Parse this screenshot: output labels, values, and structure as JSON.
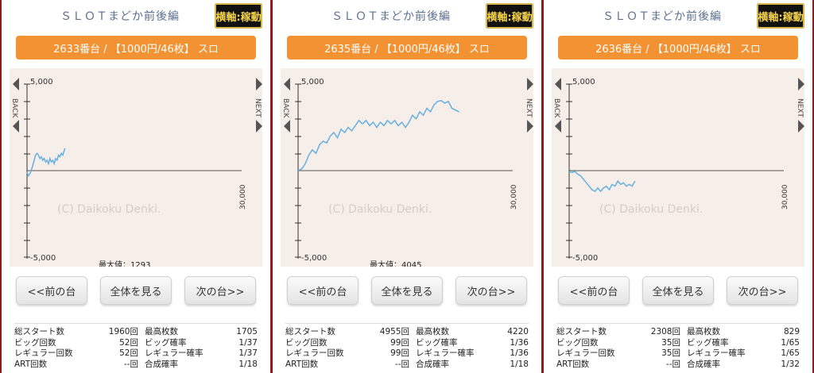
{
  "panels": [
    {
      "title": "ＳＬＯＴまどか前後編",
      "axis_button": "横軸:稼動",
      "machine_label": "2633番台 / 【1000円/46枚】 スロ",
      "chart": {
        "y_tick_top": "5,000",
        "y_tick_bottom": "-5,000",
        "x_tick_right": "30,000",
        "watermark": "(C) Daikoku Denki.",
        "back_label": "BACK",
        "next_label": "NEXT",
        "max_label": "最大値：1293",
        "x_max": 30000,
        "y_min": -5000,
        "y_max": 5000,
        "line_color": "#66b0e0",
        "series": [
          [
            0,
            -100
          ],
          [
            200,
            -300
          ],
          [
            500,
            -100
          ],
          [
            800,
            300
          ],
          [
            1000,
            600
          ],
          [
            1200,
            900
          ],
          [
            1400,
            1000
          ],
          [
            1600,
            900
          ],
          [
            1800,
            700
          ],
          [
            2000,
            800
          ],
          [
            2200,
            600
          ],
          [
            2400,
            700
          ],
          [
            2600,
            500
          ],
          [
            2800,
            600
          ],
          [
            3000,
            400
          ],
          [
            3200,
            700
          ],
          [
            3400,
            500
          ],
          [
            3600,
            600
          ],
          [
            3800,
            400
          ],
          [
            4000,
            700
          ],
          [
            4200,
            600
          ],
          [
            4400,
            900
          ],
          [
            4600,
            800
          ],
          [
            4800,
            1000
          ],
          [
            5000,
            900
          ],
          [
            5300,
            1293
          ]
        ]
      },
      "buttons": {
        "prev": "<<前の台",
        "all": "全体を見る",
        "next": "次の台>>"
      },
      "stats": [
        {
          "label1": "総スタート数",
          "value1": "1960回",
          "label2": "最高枚数",
          "value2": "1705"
        },
        {
          "label1": "ビッグ回数",
          "value1": "52回",
          "label2": "ビッグ確率",
          "value2": "1/37"
        },
        {
          "label1": "レギュラー回数",
          "value1": "52回",
          "label2": "レギュラー確率",
          "value2": "1/37"
        },
        {
          "label1": "ART回数",
          "value1": "--回",
          "label2": "合成確率",
          "value2": "1/18"
        }
      ]
    },
    {
      "title": "ＳＬＯＴまどか前後編",
      "axis_button": "横軸:稼動",
      "machine_label": "2635番台 / 【1000円/46枚】 スロ",
      "chart": {
        "y_tick_top": "5,000",
        "y_tick_bottom": "-5,000",
        "x_tick_right": "30,000",
        "watermark": "(C) Daikoku Denki.",
        "back_label": "BACK",
        "next_label": "NEXT",
        "max_label": "最大値：4045",
        "x_max": 30000,
        "y_min": -5000,
        "y_max": 5000,
        "line_color": "#66b0e0",
        "series": [
          [
            0,
            0
          ],
          [
            500,
            100
          ],
          [
            1000,
            400
          ],
          [
            1500,
            900
          ],
          [
            2000,
            1200
          ],
          [
            2500,
            1000
          ],
          [
            3000,
            1500
          ],
          [
            3500,
            1700
          ],
          [
            4000,
            1600
          ],
          [
            4500,
            2000
          ],
          [
            5000,
            2200
          ],
          [
            5500,
            1900
          ],
          [
            6000,
            2400
          ],
          [
            6500,
            2200
          ],
          [
            7000,
            2500
          ],
          [
            7500,
            2300
          ],
          [
            8000,
            2600
          ],
          [
            8500,
            2900
          ],
          [
            9000,
            2700
          ],
          [
            9500,
            2900
          ],
          [
            10000,
            2600
          ],
          [
            10500,
            2800
          ],
          [
            11000,
            2500
          ],
          [
            11500,
            2800
          ],
          [
            12000,
            2600
          ],
          [
            12500,
            2900
          ],
          [
            13000,
            2700
          ],
          [
            13500,
            2900
          ],
          [
            14000,
            2600
          ],
          [
            14500,
            2800
          ],
          [
            15000,
            2500
          ],
          [
            15500,
            2800
          ],
          [
            16000,
            3200
          ],
          [
            16500,
            3000
          ],
          [
            17000,
            3400
          ],
          [
            17500,
            3200
          ],
          [
            18000,
            3600
          ],
          [
            18500,
            3400
          ],
          [
            19000,
            3800
          ],
          [
            19500,
            4000
          ],
          [
            20000,
            4045
          ],
          [
            20500,
            3900
          ],
          [
            21000,
            4000
          ],
          [
            21500,
            3600
          ],
          [
            22000,
            3500
          ],
          [
            22500,
            3400
          ]
        ]
      },
      "buttons": {
        "prev": "<<前の台",
        "all": "全体を見る",
        "next": "次の台>>"
      },
      "stats": [
        {
          "label1": "総スタート数",
          "value1": "4955回",
          "label2": "最高枚数",
          "value2": "4220"
        },
        {
          "label1": "ビッグ回数",
          "value1": "99回",
          "label2": "ビッグ確率",
          "value2": "1/36"
        },
        {
          "label1": "レギュラー回数",
          "value1": "99回",
          "label2": "レギュラー確率",
          "value2": "1/36"
        },
        {
          "label1": "ART回数",
          "value1": "--回",
          "label2": "合成確率",
          "value2": "1/18"
        }
      ]
    },
    {
      "title": "ＳＬＯＴまどか前後編",
      "axis_button": "横軸:稼動",
      "machine_label": "2636番台 / 【1000円/46枚】 スロ",
      "chart": {
        "y_tick_top": "5,000",
        "y_tick_bottom": "-5,000",
        "x_tick_right": "30,000",
        "watermark": "(C) Daikoku Denki.",
        "back_label": "BACK",
        "next_label": "NEXT",
        "max_label": "",
        "x_max": 30000,
        "y_min": -5000,
        "y_max": 5000,
        "line_color": "#66b0e0",
        "series": [
          [
            0,
            -50
          ],
          [
            400,
            -100
          ],
          [
            800,
            -50
          ],
          [
            1200,
            -200
          ],
          [
            1600,
            -300
          ],
          [
            2000,
            -500
          ],
          [
            2400,
            -700
          ],
          [
            2800,
            -900
          ],
          [
            3200,
            -1100
          ],
          [
            3600,
            -1200
          ],
          [
            4000,
            -1000
          ],
          [
            4400,
            -1200
          ],
          [
            4800,
            -1000
          ],
          [
            5200,
            -900
          ],
          [
            5600,
            -1100
          ],
          [
            6000,
            -800
          ],
          [
            6400,
            -900
          ],
          [
            6800,
            -600
          ],
          [
            7200,
            -800
          ],
          [
            7600,
            -700
          ],
          [
            8000,
            -900
          ],
          [
            8400,
            -800
          ],
          [
            8800,
            -900
          ],
          [
            9200,
            -600
          ]
        ]
      },
      "buttons": {
        "prev": "<<前の台",
        "all": "全体を見る",
        "next": "次の台>>"
      },
      "stats": [
        {
          "label1": "総スタート数",
          "value1": "2308回",
          "label2": "最高枚数",
          "value2": "829"
        },
        {
          "label1": "ビッグ回数",
          "value1": "35回",
          "label2": "ビッグ確率",
          "value2": "1/65"
        },
        {
          "label1": "レギュラー回数",
          "value1": "35回",
          "label2": "レギュラー確率",
          "value2": "1/65"
        },
        {
          "label1": "ART回数",
          "value1": "--回",
          "label2": "合成確率",
          "value2": "1/32"
        }
      ]
    }
  ]
}
